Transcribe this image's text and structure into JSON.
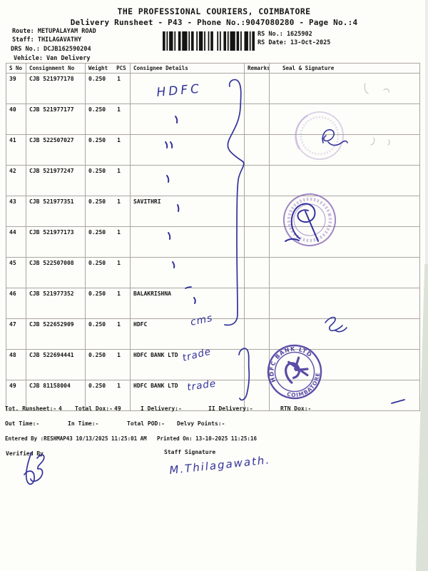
{
  "doc": {
    "title": "THE PROFESSIONAL COURIERS, COIMBATORE",
    "subtitle": "Delivery Runsheet - P43 - Phone No.:9047080280 - Page No.:4",
    "route": "Route: METUPALAYAM ROAD",
    "staff": "Staff: THILAGAVATHY",
    "drs": "DRS No.: DCJB162590204",
    "vehicle": "Vehicle: Van Delivery",
    "rs_no": "RS No.: 1625902",
    "rs_date": "RS Date: 13-Oct-2025"
  },
  "table": {
    "headers": {
      "s_no": "S No",
      "consignment": "Consignment No",
      "weight": "Weight",
      "pcs": "PCS",
      "consignee": "Consignee Details",
      "remarks": "Remarks",
      "seal": "Seal & Signature"
    },
    "rows": [
      {
        "s_no": "39",
        "consignment": "CJB 521977178",
        "weight": "0.250",
        "pcs": "1",
        "consignee": ""
      },
      {
        "s_no": "40",
        "consignment": "CJB 521977177",
        "weight": "0.250",
        "pcs": "1",
        "consignee": ""
      },
      {
        "s_no": "41",
        "consignment": "CJB 522507027",
        "weight": "0.250",
        "pcs": "1",
        "consignee": ""
      },
      {
        "s_no": "42",
        "consignment": "CJB 521977247",
        "weight": "0.250",
        "pcs": "1",
        "consignee": ""
      },
      {
        "s_no": "43",
        "consignment": "CJB 521977351",
        "weight": "0.250",
        "pcs": "1",
        "consignee": "SAVITHRI"
      },
      {
        "s_no": "44",
        "consignment": "CJB 521977173",
        "weight": "0.250",
        "pcs": "1",
        "consignee": ""
      },
      {
        "s_no": "45",
        "consignment": "CJB 522507008",
        "weight": "0.250",
        "pcs": "1",
        "consignee": ""
      },
      {
        "s_no": "46",
        "consignment": "CJB 521977352",
        "weight": "0.250",
        "pcs": "1",
        "consignee": "BALAKRISHNA"
      },
      {
        "s_no": "47",
        "consignment": "CJB 522652909",
        "weight": "0.250",
        "pcs": "1",
        "consignee": "HDFC"
      },
      {
        "s_no": "48",
        "consignment": "CJB 522694441",
        "weight": "0.250",
        "pcs": "1",
        "consignee": "HDFC BANK LTD"
      },
      {
        "s_no": "49",
        "consignment": "CJB 81158004",
        "weight": "0.250",
        "pcs": "1",
        "consignee": "HDFC BANK LTD"
      }
    ]
  },
  "handwriting": {
    "row39_note": "HDFC",
    "row47_note": "cms",
    "row48_note": "trade",
    "row49_note": "trade",
    "staff_signature_name": "M.Thilagawath."
  },
  "seal": {
    "top_text": "HDFC BANK LTD",
    "bottom_text": "COIMBATORE"
  },
  "summary": {
    "tot_runsheet_label": "Tot. Runsheet:-",
    "tot_runsheet_value": "4",
    "total_dox_label": "Total Dox:-",
    "total_dox_value": "49",
    "i_delivery_label": "I Delivery:-",
    "ii_delivery_label": "II Delivery:-",
    "rtn_dox_label": "RTN Dox:-",
    "out_time_label": "Out Time:-",
    "in_time_label": "In Time:-",
    "total_pod_label": "Total POD:-",
    "delvy_points_label": "Delvy Points:-",
    "entered_by": "Entered By :RESHMAP43 10/13/2025 11:25:01 AM",
    "printed_on": "Printed On: 13-10-2025 11:25:16",
    "verified_by_label": "Verified By",
    "staff_signature_label": "Staff Signature"
  },
  "colors": {
    "ink": "#32329b",
    "stamp_light": "#b7a1d4",
    "stamp_mid": "#7d5fb3",
    "stamp_dark": "#4a3a9e"
  }
}
